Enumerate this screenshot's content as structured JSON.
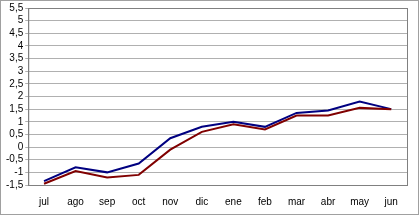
{
  "chart_data": {
    "type": "line",
    "categories": [
      "jul",
      "ago",
      "sep",
      "oct",
      "nov",
      "dic",
      "ene",
      "feb",
      "mar",
      "abr",
      "may",
      "jun"
    ],
    "series": [
      {
        "color": "#800000",
        "values": [
          -1.45,
          -0.95,
          -1.2,
          -1.1,
          -0.1,
          0.6,
          0.9,
          0.7,
          1.25,
          1.25,
          1.55,
          1.5
        ]
      },
      {
        "color": "#000080",
        "values": [
          -1.35,
          -0.8,
          -1.0,
          -0.65,
          0.35,
          0.8,
          1.0,
          0.8,
          1.35,
          1.45,
          1.8,
          1.5
        ]
      }
    ],
    "ylim": [
      -1.5,
      5.5
    ],
    "yticks": [
      {
        "value": -1.5,
        "label": "-1,5"
      },
      -1,
      {
        "value": -0.5,
        "label": "-0,5"
      },
      0,
      {
        "value": 0.5,
        "label": "0,5"
      },
      1,
      {
        "value": 1.5,
        "label": "1,5"
      },
      2,
      {
        "value": 2.5,
        "label": "2,5"
      },
      3,
      {
        "value": 3.5,
        "label": "3,5"
      },
      4,
      {
        "value": 4.5,
        "label": "4,5"
      },
      5,
      {
        "value": 5.5,
        "label": "5,5"
      }
    ],
    "grid": true
  }
}
